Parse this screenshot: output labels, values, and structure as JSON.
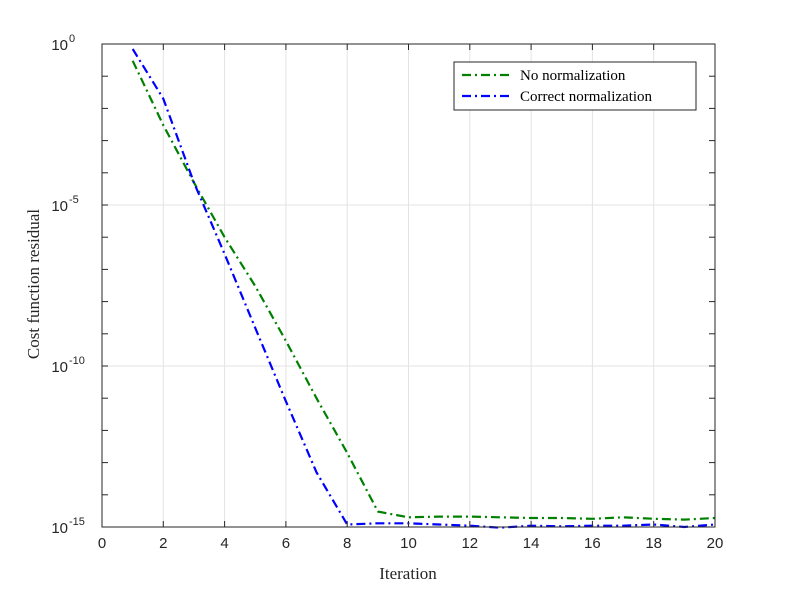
{
  "chart_data": {
    "type": "line",
    "title": "",
    "xlabel": "Iteration",
    "ylabel": "Cost function residual",
    "xlim": [
      0,
      20
    ],
    "ylim": [
      1e-15,
      1
    ],
    "yscale": "log",
    "grid": true,
    "legend_position": "top-right",
    "x_ticks": [
      0,
      2,
      4,
      6,
      8,
      10,
      12,
      14,
      16,
      18,
      20
    ],
    "y_ticks": [
      {
        "value": 1e-15,
        "base": "10",
        "exp": "-15"
      },
      {
        "value": 1e-10,
        "base": "10",
        "exp": "-10"
      },
      {
        "value": 1e-05,
        "base": "10",
        "exp": "-5"
      },
      {
        "value": 1,
        "base": "10",
        "exp": "0"
      }
    ],
    "series": [
      {
        "name": "No normalization",
        "color": "#008000",
        "line_style": "dash-dot",
        "x": [
          1,
          2,
          3,
          4,
          5,
          6,
          7,
          8,
          9,
          10,
          11,
          12,
          13,
          14,
          15,
          16,
          17,
          18,
          19,
          20
        ],
        "y": [
          0.3,
          0.003,
          5e-05,
          1e-06,
          3e-08,
          6e-10,
          1e-11,
          2e-13,
          3e-15,
          2e-15,
          2.1e-15,
          2.1e-15,
          2e-15,
          1.9e-15,
          1.9e-15,
          1.8e-15,
          2e-15,
          1.8e-15,
          1.7e-15,
          1.9e-15
        ]
      },
      {
        "name": "Correct normalization",
        "color": "#0000ff",
        "line_style": "dash-dot",
        "x": [
          1,
          2,
          3,
          4,
          5,
          6,
          7,
          8,
          9,
          10,
          11,
          12,
          13,
          14,
          15,
          16,
          17,
          18,
          19,
          20
        ],
        "y": [
          0.7,
          0.02,
          5e-05,
          3e-07,
          1.5e-09,
          8e-12,
          5e-14,
          1.2e-15,
          1.3e-15,
          1.3e-15,
          1.2e-15,
          1.1e-15,
          9.5e-16,
          1.1e-15,
          1.05e-15,
          1.1e-15,
          1.1e-15,
          1.2e-15,
          1e-15,
          1.2e-15
        ]
      }
    ]
  }
}
